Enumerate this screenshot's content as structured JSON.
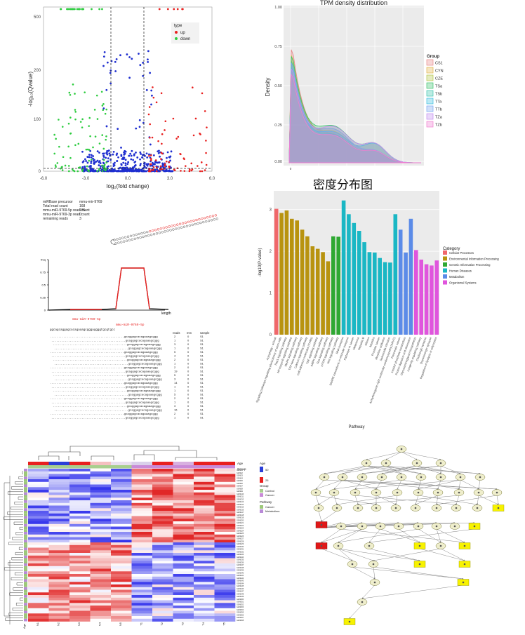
{
  "chart_data": [
    {
      "type": "scatter",
      "title": "",
      "xlabel": "log₂(fold change)",
      "ylabel": "-log₁₀(Qvalue)",
      "xlim": [
        -6,
        6
      ],
      "ylim": [
        0,
        500
      ],
      "x_ticks": [
        "-6.0",
        "-3.0",
        "0.0",
        "3.0",
        "6.0"
      ],
      "y_ticks": [
        "500",
        "200",
        "100",
        "0"
      ],
      "legend_title": "type",
      "series": [
        {
          "name": "up",
          "color": "#e8201f"
        },
        {
          "name": "down",
          "color": "#2ecc40"
        },
        {
          "name": "",
          "color": "#1f2fd0"
        }
      ],
      "grid": false
    },
    {
      "type": "area",
      "title": "TPM density distribution",
      "xlabel": "",
      "ylabel": "Density",
      "y_ticks": [
        "1.00",
        "0.75",
        "0.50",
        "0.25",
        "0.00"
      ],
      "legend_title": "Group",
      "legend_labels": [
        "CS1",
        "CYN",
        "CZE",
        "TSa",
        "TSb",
        "TTa",
        "TTb",
        "TZa",
        "TZb"
      ],
      "grid": true
    },
    {
      "type": "bar",
      "xlabel": "Pathway",
      "ylabel": "-log10(P-value)",
      "y_ticks": [
        "3",
        "2",
        "1",
        "0"
      ],
      "ylim": [
        0,
        3.45
      ],
      "legend_title": "Category",
      "categories": [
        "Autophagy - animal",
        "Signaling pathways regulating pluripotency of stem cells",
        "Rap1 signaling pathway",
        "NF-kappa B signaling pathway",
        "MAPK signaling pathway",
        "TGF-beta signaling pathway",
        "Calcium signaling pathway",
        "Cell adhesion molecules (CAMs)",
        "TNF signaling pathway",
        "AMPK signaling pathway",
        "Ras signaling pathway",
        "mTOR signaling pathway",
        "Wnt signaling pathway",
        "RNA transport",
        "SNARE interactions in vesicular transport",
        "Pathways in cancer",
        "Melanoma",
        "Hepatitis B",
        "Glioma",
        "Measles",
        "Prostate cancer",
        "Morphine addiction",
        "Salmonella infection",
        "Arrhythmogenic right ventricular cardiomyopathy (ARVC)",
        "Pancreatic cancer",
        "Inositol phosphate metabolism",
        "Protein digestion and absorption",
        "Glycosaminoglycan biosynthesis",
        "Longevity regulating pathway",
        "Cholinergic synapse",
        "Dopaminergic synapse",
        "Regulation of lipolysis in adipocytes"
      ],
      "values": [
        3.02,
        2.92,
        2.98,
        2.78,
        2.74,
        2.52,
        2.36,
        2.12,
        2.06,
        1.98,
        1.76,
        2.36,
        2.35,
        3.22,
        2.89,
        2.68,
        2.49,
        2.22,
        1.98,
        1.97,
        1.84,
        1.74,
        1.73,
        2.89,
        2.52,
        1.97,
        2.78,
        2.03,
        1.8,
        1.69,
        1.66,
        1.78
      ],
      "groups": [
        0,
        1,
        1,
        1,
        1,
        1,
        1,
        1,
        1,
        1,
        1,
        2,
        2,
        3,
        3,
        3,
        3,
        3,
        3,
        3,
        3,
        3,
        3,
        3,
        4,
        4,
        4,
        5,
        5,
        5,
        5,
        5
      ],
      "series": [
        {
          "name": "Cellular Processes",
          "color": "#f0676a"
        },
        {
          "name": "Environmental Information Processing",
          "color": "#b8930f"
        },
        {
          "name": "Genetic Information Processing",
          "color": "#2ea832"
        },
        {
          "name": "Human Diseases",
          "color": "#1ab7c4"
        },
        {
          "name": "Metabolism",
          "color": "#5b8be8"
        },
        {
          "name": "Organismal Systems",
          "color": "#e055dd"
        }
      ],
      "grid": true
    },
    {
      "type": "heatmap",
      "columns": [
        "N1",
        "N2",
        "N3",
        "N4",
        "N5",
        "T1",
        "T2",
        "T3",
        "T4",
        "T5"
      ],
      "row_label": "Age",
      "legend": [
        {
          "title": "Age",
          "labels": [
            "50",
            "25"
          ]
        },
        {
          "title": "Group",
          "labels": [
            "Control",
            "Cancer"
          ]
        },
        {
          "title": "Pathway",
          "labels": [
            "Cancer",
            "Metabolism"
          ]
        }
      ]
    },
    {
      "type": "line",
      "length_label": "length",
      "y_ticks": [
        "freq",
        "0.75",
        "0.5",
        "0.25",
        "0"
      ]
    }
  ],
  "mirna": {
    "info": [
      {
        "key": "miRBase precursor",
        "value": "mmu-mir-9769"
      },
      {
        "key": "Total read count",
        "value": "168"
      },
      {
        "key": "mmu-miR-9769-5p read count",
        "value": "135"
      },
      {
        "key": "mmu-miR-9769-3p read count",
        "value": "0"
      },
      {
        "key": "remaining reads",
        "value": "3"
      }
    ],
    "mature_top": "mmu-miR-9769-5p",
    "mature_mid": "mmu-miR-9769-5p",
    "alignment_header": "ggcagcaggagcacagaaagcgggaggggtgcgtgcc",
    "counts_header": [
      "reads",
      "mm",
      "sample"
    ]
  },
  "captions": {
    "density": "密度分布图"
  }
}
